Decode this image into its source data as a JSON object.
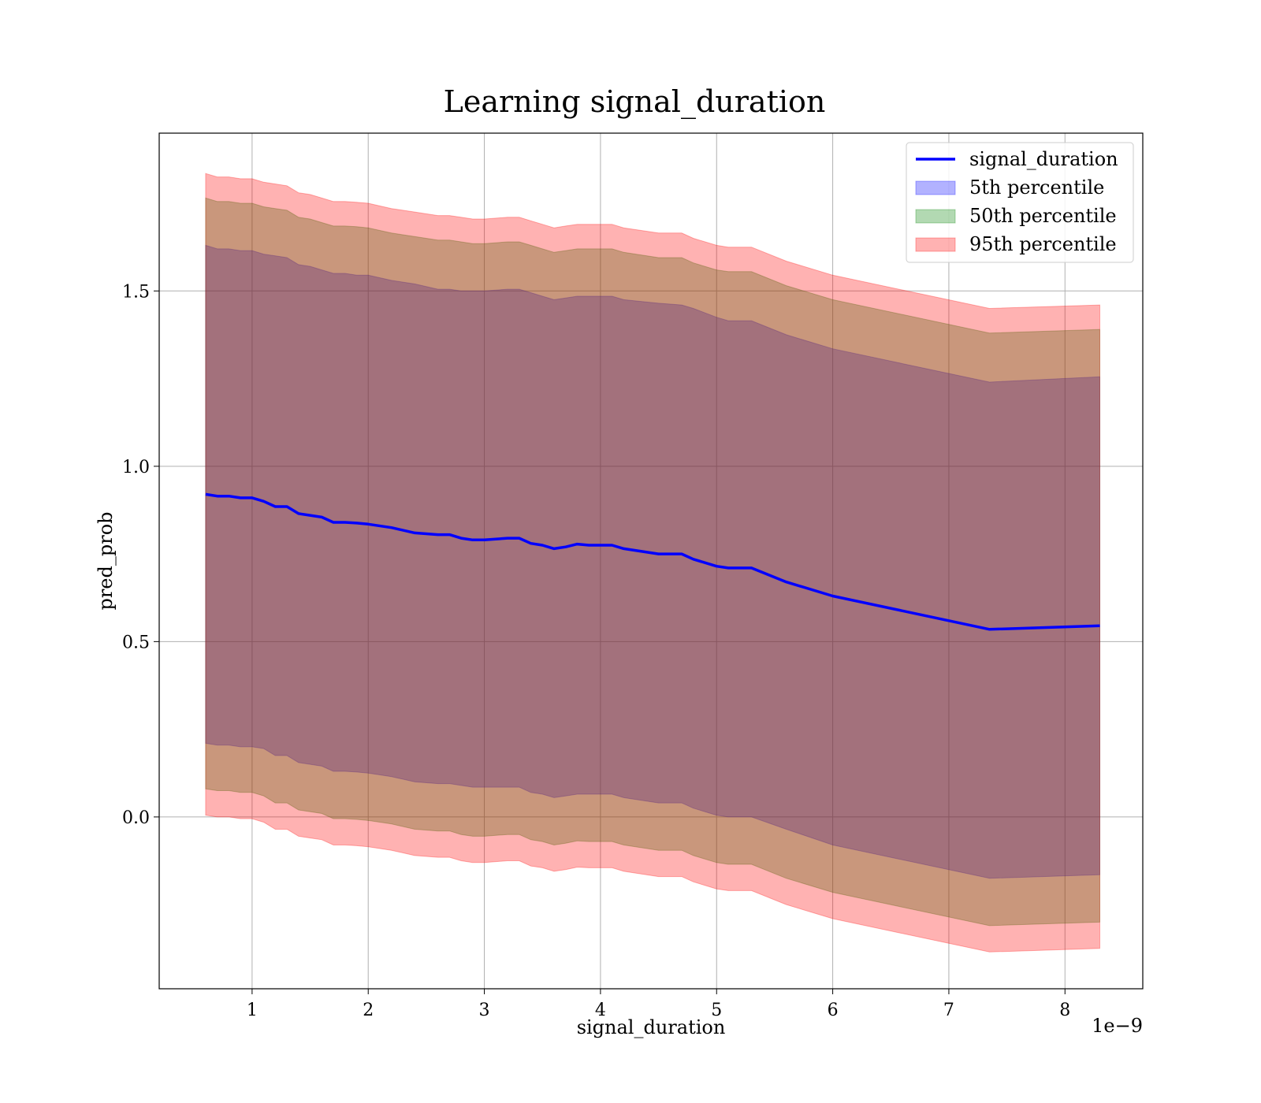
{
  "chart_data": {
    "type": "area",
    "title": "Learning signal_duration",
    "xlabel": "signal_duration",
    "ylabel": "pred_prob",
    "x_offset_label": "1e−9",
    "xlim": [
      0.2,
      8.67
    ],
    "ylim": [
      -0.49,
      1.95
    ],
    "grid": true,
    "legend_position": "top-right",
    "x_ticks": [
      1,
      2,
      3,
      4,
      5,
      6,
      7,
      8
    ],
    "x_tick_labels": [
      "1",
      "2",
      "3",
      "4",
      "5",
      "6",
      "7",
      "8"
    ],
    "y_ticks": [
      0.0,
      0.5,
      1.0,
      1.5
    ],
    "y_tick_labels": [
      "0.0",
      "0.5",
      "1.0",
      "1.5"
    ],
    "x": [
      0.6,
      0.7,
      0.8,
      0.9,
      1.0,
      1.1,
      1.2,
      1.3,
      1.4,
      1.5,
      1.6,
      1.7,
      1.8,
      1.9,
      2.0,
      2.2,
      2.4,
      2.6,
      2.7,
      2.8,
      2.9,
      3.0,
      3.2,
      3.3,
      3.4,
      3.5,
      3.6,
      3.7,
      3.8,
      3.9,
      4.0,
      4.1,
      4.2,
      4.5,
      4.7,
      4.8,
      5.0,
      5.1,
      5.3,
      5.6,
      6.0,
      7.35,
      8.3
    ],
    "series": [
      {
        "name": "signal_duration",
        "kind": "line",
        "color": "#0000ff",
        "values": [
          0.92,
          0.915,
          0.915,
          0.91,
          0.91,
          0.9,
          0.885,
          0.885,
          0.865,
          0.86,
          0.855,
          0.84,
          0.84,
          0.838,
          0.835,
          0.825,
          0.81,
          0.805,
          0.805,
          0.795,
          0.79,
          0.79,
          0.795,
          0.795,
          0.78,
          0.775,
          0.765,
          0.77,
          0.778,
          0.775,
          0.775,
          0.775,
          0.765,
          0.75,
          0.75,
          0.735,
          0.715,
          0.71,
          0.71,
          0.67,
          0.63,
          0.535,
          0.545
        ]
      },
      {
        "name": "5th percentile",
        "kind": "band",
        "color": "#0000ff",
        "opacity": 0.3,
        "upper": [
          1.63,
          1.62,
          1.62,
          1.615,
          1.615,
          1.605,
          1.6,
          1.595,
          1.575,
          1.57,
          1.56,
          1.55,
          1.55,
          1.545,
          1.545,
          1.53,
          1.52,
          1.505,
          1.505,
          1.5,
          1.5,
          1.5,
          1.505,
          1.505,
          1.495,
          1.485,
          1.475,
          1.48,
          1.485,
          1.485,
          1.485,
          1.485,
          1.475,
          1.465,
          1.46,
          1.45,
          1.425,
          1.415,
          1.415,
          1.375,
          1.335,
          1.24,
          1.255
        ],
        "lower": [
          0.21,
          0.205,
          0.205,
          0.2,
          0.2,
          0.195,
          0.175,
          0.175,
          0.155,
          0.15,
          0.145,
          0.13,
          0.13,
          0.128,
          0.125,
          0.115,
          0.1,
          0.095,
          0.095,
          0.09,
          0.085,
          0.085,
          0.085,
          0.085,
          0.07,
          0.065,
          0.055,
          0.06,
          0.065,
          0.065,
          0.065,
          0.065,
          0.055,
          0.04,
          0.04,
          0.025,
          0.005,
          0.0,
          0.0,
          -0.035,
          -0.08,
          -0.175,
          -0.165
        ]
      },
      {
        "name": "50th percentile",
        "kind": "band",
        "color": "#008000",
        "opacity": 0.3,
        "upper": [
          1.765,
          1.755,
          1.755,
          1.75,
          1.75,
          1.74,
          1.735,
          1.73,
          1.71,
          1.705,
          1.695,
          1.685,
          1.685,
          1.683,
          1.68,
          1.665,
          1.655,
          1.645,
          1.645,
          1.64,
          1.635,
          1.635,
          1.64,
          1.64,
          1.63,
          1.62,
          1.61,
          1.615,
          1.62,
          1.62,
          1.62,
          1.62,
          1.61,
          1.595,
          1.595,
          1.58,
          1.56,
          1.555,
          1.555,
          1.515,
          1.475,
          1.38,
          1.39
        ],
        "lower": [
          0.08,
          0.075,
          0.075,
          0.07,
          0.07,
          0.06,
          0.04,
          0.04,
          0.02,
          0.015,
          0.01,
          -0.005,
          -0.005,
          -0.007,
          -0.01,
          -0.02,
          -0.035,
          -0.04,
          -0.04,
          -0.05,
          -0.055,
          -0.055,
          -0.05,
          -0.05,
          -0.065,
          -0.07,
          -0.08,
          -0.075,
          -0.068,
          -0.07,
          -0.07,
          -0.07,
          -0.08,
          -0.095,
          -0.095,
          -0.11,
          -0.13,
          -0.135,
          -0.135,
          -0.175,
          -0.215,
          -0.31,
          -0.3
        ]
      },
      {
        "name": "95th percentile",
        "kind": "band",
        "color": "#ff0000",
        "opacity": 0.3,
        "upper": [
          1.835,
          1.825,
          1.825,
          1.82,
          1.82,
          1.81,
          1.805,
          1.8,
          1.78,
          1.775,
          1.765,
          1.755,
          1.755,
          1.753,
          1.75,
          1.735,
          1.725,
          1.715,
          1.715,
          1.71,
          1.705,
          1.705,
          1.71,
          1.71,
          1.7,
          1.69,
          1.68,
          1.685,
          1.69,
          1.69,
          1.69,
          1.69,
          1.68,
          1.665,
          1.665,
          1.65,
          1.63,
          1.625,
          1.625,
          1.585,
          1.545,
          1.45,
          1.46
        ],
        "lower": [
          0.005,
          0.0,
          0.0,
          -0.005,
          -0.005,
          -0.015,
          -0.035,
          -0.035,
          -0.055,
          -0.06,
          -0.065,
          -0.08,
          -0.08,
          -0.082,
          -0.085,
          -0.095,
          -0.11,
          -0.115,
          -0.115,
          -0.125,
          -0.13,
          -0.13,
          -0.125,
          -0.125,
          -0.14,
          -0.145,
          -0.155,
          -0.15,
          -0.143,
          -0.145,
          -0.145,
          -0.145,
          -0.155,
          -0.17,
          -0.17,
          -0.185,
          -0.205,
          -0.21,
          -0.21,
          -0.25,
          -0.29,
          -0.385,
          -0.375
        ]
      }
    ],
    "legend": [
      "signal_duration",
      "5th percentile",
      "50th percentile",
      "95th percentile"
    ]
  }
}
